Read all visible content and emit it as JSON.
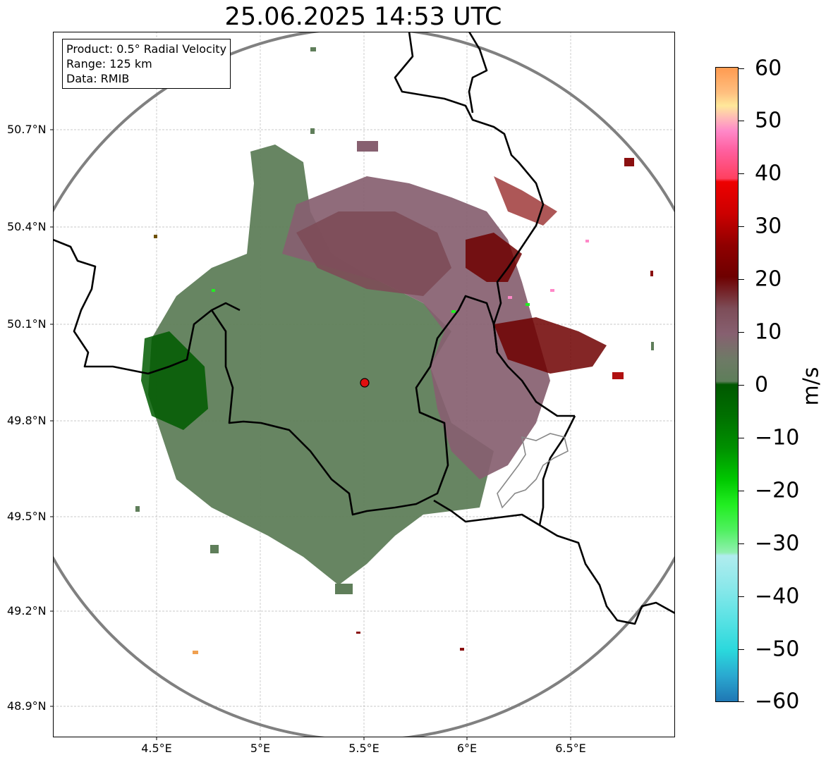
{
  "title": "25.06.2025 14:53 UTC",
  "info": {
    "product": "Product: 0.5° Radial Velocity",
    "range": "Range: 125 km",
    "source": "Data: RMIB"
  },
  "axes": {
    "lon_ticks": [
      "4.5°E",
      "5°E",
      "5.5°E",
      "6°E",
      "6.5°E"
    ],
    "lat_ticks": [
      "50.7°N",
      "50.4°N",
      "50.1°N",
      "49.8°N",
      "49.5°N",
      "49.2°N",
      "48.9°N"
    ],
    "lon_range": [
      4.0,
      7.0
    ],
    "lat_range": [
      48.8,
      51.0
    ]
  },
  "radar_site": {
    "lon": 5.5,
    "lat": 49.91
  },
  "colorbar": {
    "label": "m/s",
    "ticks": [
      "60",
      "50",
      "40",
      "30",
      "20",
      "10",
      "0",
      "−10",
      "−20",
      "−30",
      "−40",
      "−50",
      "−60"
    ],
    "range": [
      -60,
      60
    ],
    "colors": {
      "neg_strong": "#1f77b4",
      "cyan": "#2ad8dc",
      "light_cyan": "#b0ecee",
      "bright_green": "#22ee22",
      "green": "#007a00",
      "dark_green": "#005800",
      "neutral_green": "#5e7e5a",
      "neutral_mauve": "#876070",
      "dark_red": "#6e0000",
      "red": "#ee0000",
      "pink": "#ff88c8",
      "light_yellow": "#ffe89a",
      "orange": "#ff9a50"
    }
  }
}
